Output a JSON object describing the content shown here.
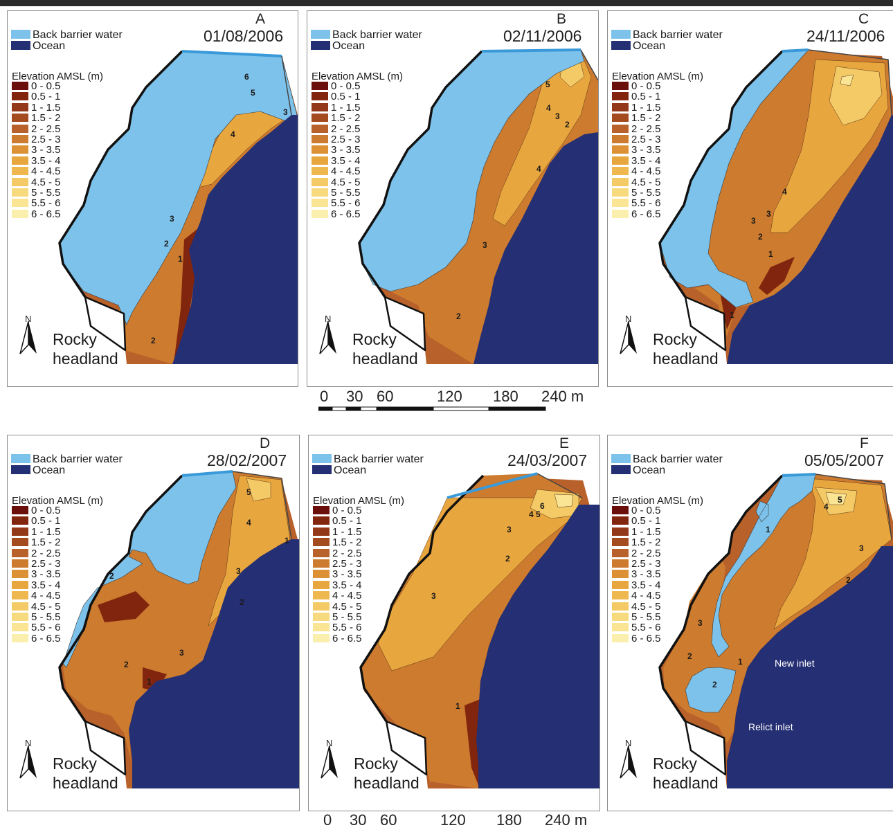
{
  "legend": {
    "back_barrier_water": "Back barrier water",
    "ocean": "Ocean",
    "elevation_header": "Elevation AMSL (m)",
    "elevation_classes": [
      "0 - 0.5",
      "0.5 - 1",
      "1 - 1.5",
      "1.5 - 2",
      "2 - 2.5",
      "2.5 - 3",
      "3 - 3.5",
      "3.5 - 4",
      "4 - 4.5",
      "4.5 - 5",
      "5 - 5.5",
      "5.5 - 6",
      "6 - 6.5"
    ]
  },
  "colors": {
    "back_barrier_water": "#7dc2ea",
    "ocean": "#252f73",
    "elevation_ramp": [
      "#6a0f0c",
      "#82250f",
      "#94381a",
      "#a44b20",
      "#b8612a",
      "#cd7b2e",
      "#dc9134",
      "#e8a63e",
      "#eeb84f",
      "#f3ca66",
      "#f7d97e",
      "#f9e594",
      "#fbefae"
    ]
  },
  "panels": [
    {
      "letter": "A",
      "date": "01/08/2006",
      "place": [
        "Rocky",
        "headland"
      ],
      "north": "N",
      "contour_labels": [
        "6",
        "5",
        "4",
        "3",
        "3",
        "2",
        "1",
        "2"
      ]
    },
    {
      "letter": "B",
      "date": "02/11/2006",
      "place": [
        "Rocky",
        "headland"
      ],
      "north": "N",
      "contour_labels": [
        "5",
        "4",
        "3",
        "2",
        "4",
        "3",
        "2"
      ]
    },
    {
      "letter": "C",
      "date": "24/11/2006",
      "place": [
        "Rocky",
        "headland"
      ],
      "north": "N",
      "contour_labels": [
        "4",
        "3",
        "3",
        "2",
        "1",
        "1"
      ]
    },
    {
      "letter": "D",
      "date": "28/02/2007",
      "place": [
        "Rocky",
        "headland"
      ],
      "north": "N",
      "contour_labels": [
        "5",
        "4",
        "1",
        "3",
        "2",
        "2",
        "3",
        "2",
        "1"
      ]
    },
    {
      "letter": "E",
      "date": "24/03/2007",
      "place": [
        "Rocky",
        "headland"
      ],
      "north": "N",
      "contour_labels": [
        "6",
        "5",
        "4",
        "3",
        "2",
        "3",
        "1"
      ]
    },
    {
      "letter": "F",
      "date": "05/05/2007",
      "place": [
        "Rocky",
        "headland"
      ],
      "north": "N",
      "contour_labels": [
        "5",
        "4",
        "1",
        "3",
        "2",
        "3",
        "2",
        "1",
        "2"
      ],
      "annotations": [
        "New inlet",
        "Relict inlet"
      ]
    }
  ],
  "scale_bars": [
    {
      "labels": [
        "0",
        "30",
        "60",
        "120",
        "180",
        "240 m"
      ]
    },
    {
      "labels": [
        "0",
        "30",
        "60",
        "120",
        "180",
        "240 m"
      ]
    }
  ]
}
